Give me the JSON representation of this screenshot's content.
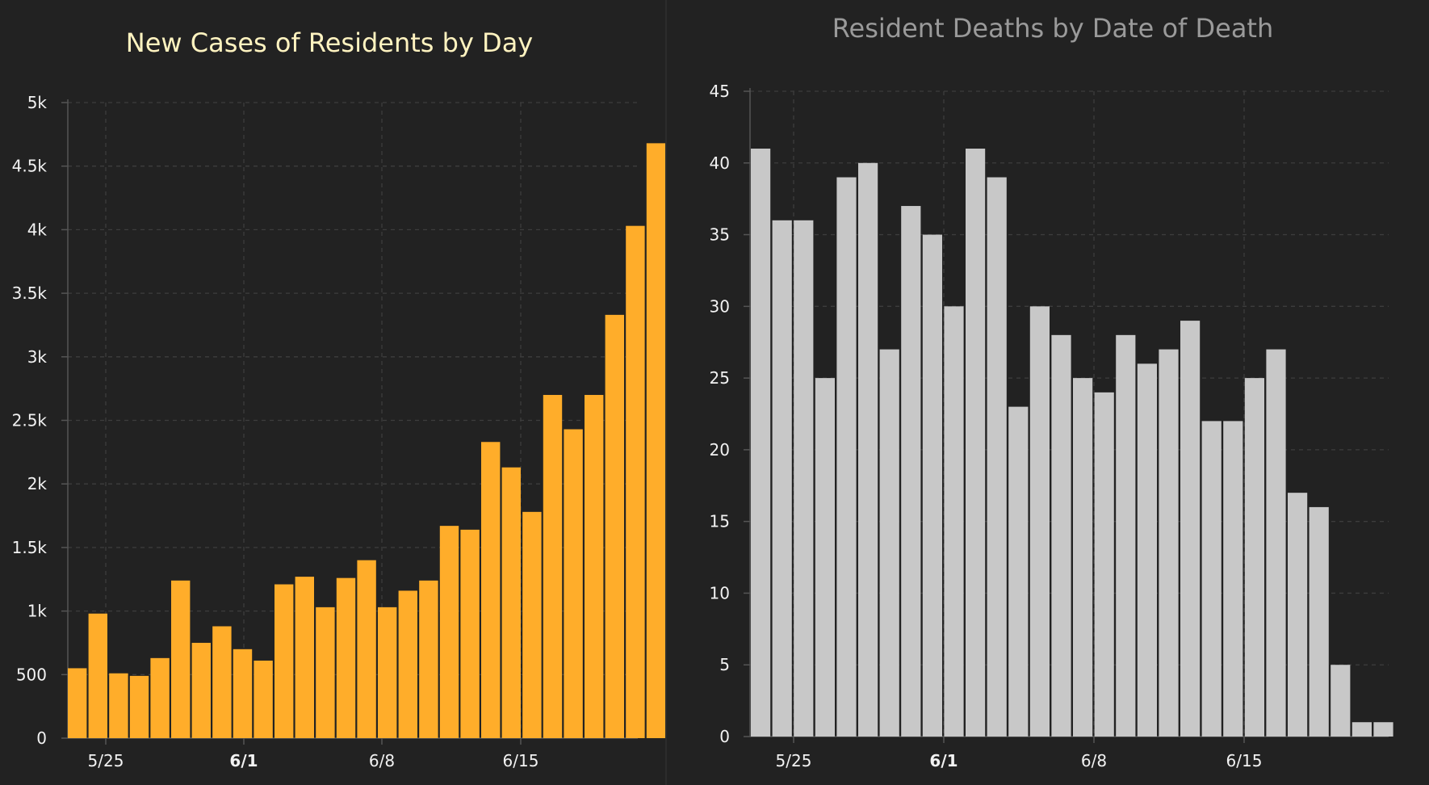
{
  "colors": {
    "background": "#222222",
    "cases_bar": "#ffad2a",
    "deaths_bar": "#c8c8c8",
    "cases_title": "#fff3c0",
    "deaths_title": "#9a9a9a",
    "grid": "#3d3d3d",
    "axis": "#555555"
  },
  "chart_data": [
    {
      "type": "bar",
      "title": "New Cases of Residents by Day",
      "xlabel": "",
      "ylabel": "",
      "ylim": [
        0,
        5000
      ],
      "yticks": [
        0,
        500,
        1000,
        1500,
        2000,
        2500,
        3000,
        3500,
        4000,
        4500,
        5000
      ],
      "ytick_labels": [
        "0",
        "500",
        "1k",
        "1.5k",
        "2k",
        "2.5k",
        "3k",
        "3.5k",
        "4k",
        "4.5k",
        "5k"
      ],
      "xtick_labels": [
        "5/25",
        "6/1",
        "6/8",
        "6/15"
      ],
      "xtick_bold": "6/1",
      "grid": true,
      "categories": [
        "5/23",
        "5/24",
        "5/25",
        "5/26",
        "5/27",
        "5/28",
        "5/29",
        "5/30",
        "5/31",
        "6/1",
        "6/2",
        "6/3",
        "6/4",
        "6/5",
        "6/6",
        "6/7",
        "6/8",
        "6/9",
        "6/10",
        "6/11",
        "6/12",
        "6/13",
        "6/14",
        "6/15",
        "6/16",
        "6/17",
        "6/18",
        "6/19",
        "6/20",
        "6/21"
      ],
      "values": [
        550,
        980,
        510,
        490,
        630,
        1240,
        750,
        880,
        700,
        610,
        1210,
        1270,
        1030,
        1260,
        1400,
        1030,
        1160,
        1240,
        1670,
        1640,
        2330,
        2130,
        1780,
        2700,
        2430,
        2700,
        3330,
        4030,
        4680,
        0
      ]
    },
    {
      "type": "bar",
      "title": "Resident Deaths by Date of Death",
      "xlabel": "",
      "ylabel": "",
      "ylim": [
        0,
        45
      ],
      "yticks": [
        0,
        5,
        10,
        15,
        20,
        25,
        30,
        35,
        40,
        45
      ],
      "ytick_labels": [
        "0",
        "5",
        "10",
        "15",
        "20",
        "25",
        "30",
        "35",
        "40",
        "45"
      ],
      "xtick_labels": [
        "5/25",
        "6/1",
        "6/8",
        "6/15"
      ],
      "xtick_bold": "6/1",
      "grid": true,
      "categories": [
        "5/23",
        "5/24",
        "5/25",
        "5/26",
        "5/27",
        "5/28",
        "5/29",
        "5/30",
        "5/31",
        "6/1",
        "6/2",
        "6/3",
        "6/4",
        "6/5",
        "6/6",
        "6/7",
        "6/8",
        "6/9",
        "6/10",
        "6/11",
        "6/12",
        "6/13",
        "6/14",
        "6/15",
        "6/16",
        "6/17",
        "6/18",
        "6/19",
        "6/20",
        "6/21"
      ],
      "values": [
        41,
        36,
        36,
        25,
        39,
        40,
        27,
        37,
        35,
        30,
        41,
        39,
        23,
        30,
        28,
        25,
        24,
        28,
        26,
        27,
        29,
        22,
        22,
        25,
        27,
        17,
        16,
        5,
        1,
        1
      ]
    }
  ]
}
